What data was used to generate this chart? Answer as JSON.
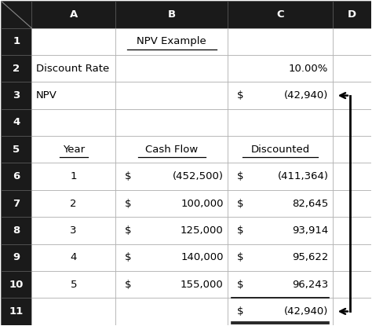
{
  "col_headers": [
    "",
    "A",
    "B",
    "C",
    "D"
  ],
  "row_labels": [
    "1",
    "2",
    "3",
    "4",
    "5",
    "6",
    "7",
    "8",
    "9",
    "10",
    "11"
  ],
  "header_bg": "#1a1a1a",
  "header_fg": "#ffffff",
  "cell_bg": "#ffffff",
  "grid_color": "#aaaaaa",
  "font_color": "#000000",
  "col_widths": [
    0.32,
    0.88,
    1.18,
    1.1,
    0.4
  ],
  "rows": {
    "1": {
      "B": {
        "text": "NPV Example",
        "align": "center",
        "underline": true
      }
    },
    "2": {
      "A": {
        "text": "Discount Rate",
        "align": "left"
      },
      "C": {
        "text": "10.00%",
        "align": "right"
      }
    },
    "3": {
      "A": {
        "text": "NPV",
        "align": "left"
      },
      "C": {
        "text": "$  (42,940)",
        "align": "right",
        "dollar_split": true
      }
    },
    "4": {},
    "5": {
      "A": {
        "text": "Year",
        "align": "center",
        "underline": true
      },
      "B": {
        "text": "Cash Flow",
        "align": "center",
        "underline": true
      },
      "C": {
        "text": "Discounted",
        "align": "center",
        "underline": true
      }
    },
    "6": {
      "A": {
        "text": "1",
        "align": "center"
      },
      "B": {
        "text": "$  (452,500)",
        "align": "right",
        "dollar_split": true
      },
      "C": {
        "text": "$  (411,364)",
        "align": "right",
        "dollar_split": true
      }
    },
    "7": {
      "A": {
        "text": "2",
        "align": "center"
      },
      "B": {
        "text": "$   100,000",
        "align": "right",
        "dollar_split": true
      },
      "C": {
        "text": "$    82,645",
        "align": "right",
        "dollar_split": true
      }
    },
    "8": {
      "A": {
        "text": "3",
        "align": "center"
      },
      "B": {
        "text": "$   125,000",
        "align": "right",
        "dollar_split": true
      },
      "C": {
        "text": "$    93,914",
        "align": "right",
        "dollar_split": true
      }
    },
    "9": {
      "A": {
        "text": "4",
        "align": "center"
      },
      "B": {
        "text": "$   140,000",
        "align": "right",
        "dollar_split": true
      },
      "C": {
        "text": "$    95,622",
        "align": "right",
        "dollar_split": true
      }
    },
    "10": {
      "A": {
        "text": "5",
        "align": "center"
      },
      "B": {
        "text": "$   155,000",
        "align": "right",
        "dollar_split": true
      },
      "C": {
        "text": "$    96,243",
        "align": "right",
        "dollar_split": true
      }
    },
    "11": {
      "C": {
        "text": "$  (42,940)",
        "align": "right",
        "dollar_split": true,
        "top_border": true,
        "double_bottom": true
      }
    }
  },
  "bracket_row3": 3,
  "bracket_row11": 11,
  "font_size": 9.5,
  "header_font_size": 9.5
}
